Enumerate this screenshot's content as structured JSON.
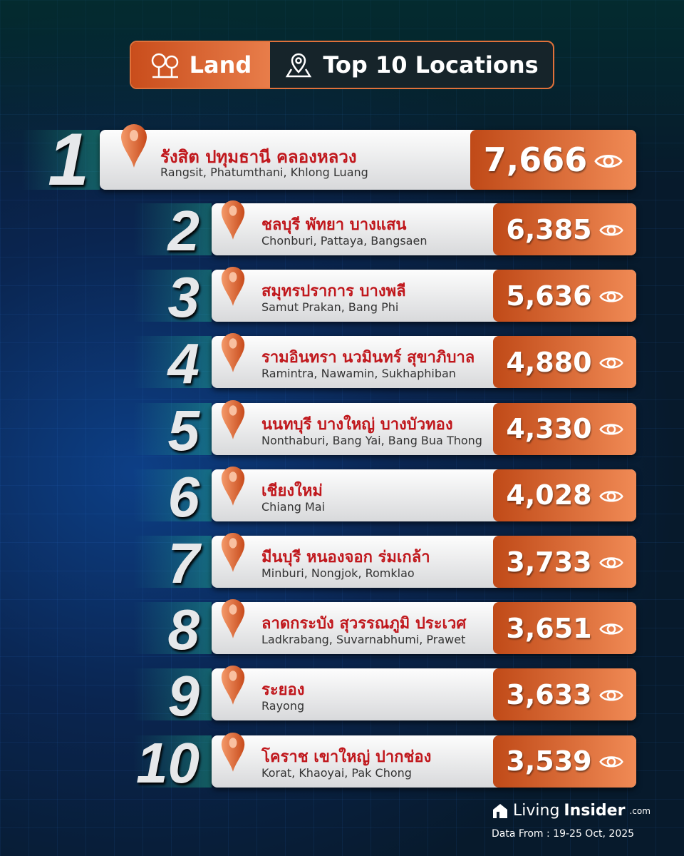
{
  "header": {
    "category": "Land",
    "title": "Top 10 Locations"
  },
  "colors": {
    "accent": "#e0713a",
    "thai_text": "#c0171c"
  },
  "locations": [
    {
      "rank": "1",
      "thai": "รังสิต ปทุมธานี คลองหลวง",
      "english": "Rangsit, Phatumthani, Khlong Luang",
      "views": "7,666"
    },
    {
      "rank": "2",
      "thai": "ชลบุรี พัทยา บางแสน",
      "english": "Chonburi, Pattaya, Bangsaen",
      "views": "6,385"
    },
    {
      "rank": "3",
      "thai": "สมุทรปราการ บางพลี",
      "english": "Samut Prakan, Bang Phi",
      "views": "5,636"
    },
    {
      "rank": "4",
      "thai": "รามอินทรา นวมินทร์ สุขาภิบาล",
      "english": "Ramintra, Nawamin, Sukhaphiban",
      "views": "4,880"
    },
    {
      "rank": "5",
      "thai": "นนทบุรี บางใหญ่ บางบัวทอง",
      "english": "Nonthaburi, Bang Yai, Bang Bua Thong",
      "views": "4,330"
    },
    {
      "rank": "6",
      "thai": "เชียงใหม่",
      "english": "Chiang Mai",
      "views": "4,028"
    },
    {
      "rank": "7",
      "thai": "มีนบุรี หนองจอก ร่มเกล้า",
      "english": "Minburi, Nongjok, Romklao",
      "views": "3,733"
    },
    {
      "rank": "8",
      "thai": "ลาดกระบัง สุวรรณภูมิ ประเวศ",
      "english": "Ladkrabang, Suvarnabhumi, Prawet",
      "views": "3,651"
    },
    {
      "rank": "9",
      "thai": "ระยอง",
      "english": "Rayong",
      "views": "3,633"
    },
    {
      "rank": "10",
      "thai": "โคราช เขาใหญ่ ปากช่อง",
      "english": "Korat, Khaoyai, Pak Chong",
      "views": "3,539"
    }
  ],
  "footer": {
    "brand_a": "Living",
    "brand_b": "Insider",
    "brand_c": ".com",
    "date": "Data From : 19-25 Oct, 2025"
  }
}
